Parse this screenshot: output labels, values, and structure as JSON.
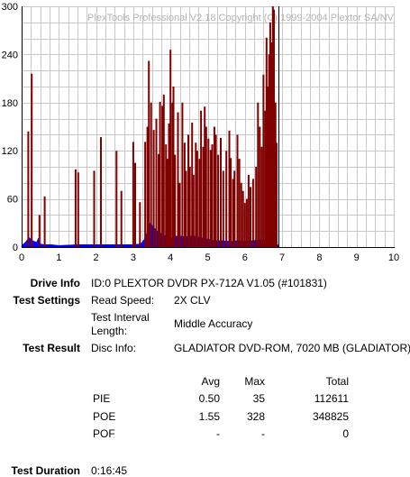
{
  "chart_data": {
    "type": "bar",
    "watermark": "PlexTools Professional V2.18 Copyright (C) 1999-2004 Plextor SA/NV",
    "xlim": [
      0,
      10
    ],
    "ylim": [
      0,
      300
    ],
    "xticks": [
      "0",
      "1",
      "2",
      "3",
      "4",
      "5",
      "6",
      "7",
      "8",
      "9",
      "10"
    ],
    "yticks": [
      "0",
      "60",
      "120",
      "180",
      "240",
      "300"
    ],
    "grid": true,
    "cursor_x": 6.9,
    "data_end_x": 6.9,
    "pie_color": "#0000ff",
    "poe_color": "#800000",
    "series": [
      {
        "name": "PIE",
        "points": [
          [
            0.0,
            2
          ],
          [
            0.1,
            6
          ],
          [
            0.2,
            12
          ],
          [
            0.3,
            8
          ],
          [
            0.4,
            6
          ],
          [
            0.45,
            11
          ],
          [
            0.5,
            4
          ],
          [
            0.6,
            3
          ],
          [
            0.8,
            3
          ],
          [
            1.0,
            2
          ],
          [
            1.5,
            3
          ],
          [
            2.0,
            3
          ],
          [
            2.5,
            3
          ],
          [
            3.0,
            3
          ],
          [
            3.2,
            4
          ],
          [
            3.3,
            10
          ],
          [
            3.4,
            22
          ],
          [
            3.45,
            30
          ],
          [
            3.5,
            28
          ],
          [
            3.6,
            22
          ],
          [
            3.7,
            18
          ],
          [
            3.8,
            16
          ],
          [
            3.9,
            13
          ],
          [
            4.0,
            12
          ],
          [
            4.2,
            14
          ],
          [
            4.4,
            13
          ],
          [
            4.6,
            14
          ],
          [
            4.8,
            12
          ],
          [
            5.0,
            10
          ],
          [
            5.2,
            8
          ],
          [
            5.4,
            8
          ],
          [
            5.6,
            7
          ],
          [
            5.8,
            8
          ],
          [
            6.0,
            7
          ],
          [
            6.2,
            8
          ],
          [
            6.4,
            9
          ],
          [
            6.6,
            9
          ],
          [
            6.8,
            8
          ],
          [
            6.9,
            2
          ]
        ]
      },
      {
        "name": "POE",
        "points": [
          [
            0.18,
            144
          ],
          [
            0.27,
            216
          ],
          [
            0.48,
            40
          ],
          [
            0.62,
            63
          ],
          [
            1.45,
            97
          ],
          [
            1.52,
            93
          ],
          [
            1.95,
            95
          ],
          [
            2.13,
            137
          ],
          [
            2.55,
            120
          ],
          [
            2.68,
            70
          ],
          [
            3.0,
            131
          ],
          [
            3.05,
            105
          ],
          [
            3.18,
            56
          ],
          [
            3.32,
            131
          ],
          [
            3.38,
            150
          ],
          [
            3.42,
            232
          ],
          [
            3.48,
            180
          ],
          [
            3.55,
            146
          ],
          [
            3.62,
            160
          ],
          [
            3.68,
            116
          ],
          [
            3.72,
            181
          ],
          [
            3.78,
            176
          ],
          [
            3.82,
            190
          ],
          [
            3.88,
            128
          ],
          [
            3.92,
            110
          ],
          [
            3.96,
            154
          ],
          [
            4.0,
            246
          ],
          [
            4.05,
            180
          ],
          [
            4.08,
            200
          ],
          [
            4.12,
            115
          ],
          [
            4.2,
            168
          ],
          [
            4.25,
            80
          ],
          [
            4.32,
            180
          ],
          [
            4.38,
            130
          ],
          [
            4.42,
            95
          ],
          [
            4.48,
            140
          ],
          [
            4.52,
            100
          ],
          [
            4.58,
            155
          ],
          [
            4.62,
            90
          ],
          [
            4.68,
            130
          ],
          [
            4.72,
            120
          ],
          [
            4.78,
            110
          ],
          [
            4.82,
            170
          ],
          [
            4.88,
            125
          ],
          [
            4.92,
            175
          ],
          [
            4.96,
            150
          ],
          [
            5.02,
            135
          ],
          [
            5.08,
            121
          ],
          [
            5.12,
            128
          ],
          [
            5.18,
            150
          ],
          [
            5.22,
            140
          ],
          [
            5.28,
            115
          ],
          [
            5.35,
            136
          ],
          [
            5.42,
            95
          ],
          [
            5.5,
            120
          ],
          [
            5.58,
            145
          ],
          [
            5.62,
            111
          ],
          [
            5.68,
            85
          ],
          [
            5.72,
            95
          ],
          [
            5.8,
            140
          ],
          [
            5.85,
            110
          ],
          [
            5.9,
            80
          ],
          [
            5.95,
            70
          ],
          [
            6.0,
            55
          ],
          [
            6.05,
            60
          ],
          [
            6.1,
            90
          ],
          [
            6.15,
            75
          ],
          [
            6.22,
            85
          ],
          [
            6.3,
            100
          ],
          [
            6.35,
            180
          ],
          [
            6.4,
            150
          ],
          [
            6.45,
            125
          ],
          [
            6.5,
            215
          ],
          [
            6.55,
            170
          ],
          [
            6.58,
            261
          ],
          [
            6.62,
            200
          ],
          [
            6.65,
            240
          ],
          [
            6.68,
            280
          ],
          [
            6.72,
            255
          ],
          [
            6.75,
            300
          ],
          [
            6.78,
            296
          ],
          [
            6.82,
            180
          ],
          [
            6.85,
            130
          ]
        ]
      }
    ]
  },
  "drive_info": {
    "label": "Drive Info",
    "value": "ID:0 PLEXTOR DVDR PX-712A V1.05 (#101831)"
  },
  "test_settings": {
    "label": "Test Settings",
    "read_speed_label": "Read Speed:",
    "read_speed_value": "2X CLV",
    "interval_label_1": "Test Interval",
    "interval_label_2": "Length:",
    "interval_value": "Middle Accuracy"
  },
  "test_result": {
    "label": "Test Result",
    "disc_info_label": "Disc Info:",
    "disc_info_value": "GLADIATOR DVD-ROM, 7020 MB (GLADIATOR)"
  },
  "stats": {
    "headers": {
      "avg": "Avg",
      "max": "Max",
      "total": "Total"
    },
    "rows": [
      {
        "name": "PIE",
        "avg": "0.50",
        "max": "35",
        "total": "112611"
      },
      {
        "name": "POE",
        "avg": "1.55",
        "max": "328",
        "total": "348825"
      },
      {
        "name": "POF",
        "avg": "-",
        "max": "-",
        "total": "0"
      }
    ]
  },
  "test_duration": {
    "label": "Test Duration",
    "value": "0:16:45"
  }
}
